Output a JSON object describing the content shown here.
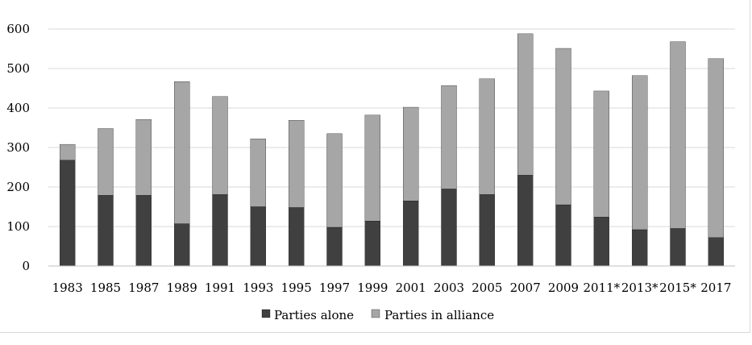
{
  "chart_data": {
    "type": "bar",
    "stacked": true,
    "title": "",
    "xlabel": "",
    "ylabel": "",
    "ylim": [
      0,
      600
    ],
    "yticks": [
      0,
      100,
      200,
      300,
      400,
      500,
      600
    ],
    "grid": true,
    "legend_position": "bottom",
    "categories": [
      "1983",
      "1985",
      "1987",
      "1989",
      "1991",
      "1993",
      "1995",
      "1997",
      "1999",
      "2001",
      "2003",
      "2005",
      "2007",
      "2009",
      "2011*",
      "2013*",
      "2015*",
      "2017"
    ],
    "series": [
      {
        "name": "Parties alone",
        "color": "#404040",
        "values": [
          268,
          179,
          179,
          107,
          181,
          150,
          148,
          98,
          114,
          165,
          195,
          181,
          230,
          155,
          124,
          92,
          95,
          72
        ]
      },
      {
        "name": "Parties in alliance",
        "color": "#a6a6a6",
        "values": [
          40,
          169,
          192,
          360,
          248,
          172,
          221,
          237,
          268,
          237,
          262,
          293,
          358,
          396,
          319,
          390,
          473,
          453
        ]
      }
    ]
  }
}
